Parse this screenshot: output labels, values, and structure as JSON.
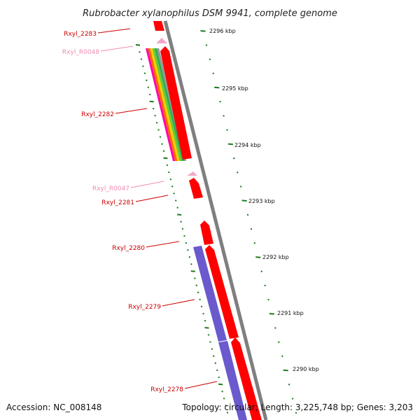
{
  "title": "Rubrobacter xylanophilus DSM 9941, complete genome",
  "footer": {
    "accession": "Accession: NC_008148",
    "summary": "Topology: circular; Length: 3,225,748 bp; Genes: 3,203"
  },
  "colors": {
    "cds": "#ff0000",
    "rna": "#f4a6c8",
    "blue_feature": "#6a5acd",
    "backbone": "#7f7f7f",
    "tick": "#1e7b1e",
    "label_red": "#cc0000",
    "label_pink": "#f08cb4"
  },
  "ticks": [
    {
      "label": "2296 kbp"
    },
    {
      "label": "2295 kbp"
    },
    {
      "label": "2294 kbp"
    },
    {
      "label": "2293 kbp"
    },
    {
      "label": "2292 kbp"
    },
    {
      "label": "2291 kbp"
    },
    {
      "label": "2290 kbp"
    }
  ],
  "genes": [
    {
      "label": "Rxyl_2283",
      "type": "cds"
    },
    {
      "label": "Rxyl_R0048",
      "type": "rna"
    },
    {
      "label": "Rxyl_2282",
      "type": "cds"
    },
    {
      "label": "Rxyl_R0047",
      "type": "rna"
    },
    {
      "label": "Rxyl_2281",
      "type": "cds"
    },
    {
      "label": "Rxyl_2280",
      "type": "cds"
    },
    {
      "label": "Rxyl_2279",
      "type": "cds"
    },
    {
      "label": "Rxyl_2278",
      "type": "cds"
    }
  ],
  "stripe_colors": [
    "#ff00aa",
    "#ff6600",
    "#ffcc00",
    "#66cc33",
    "#33aa55",
    "#999999"
  ]
}
